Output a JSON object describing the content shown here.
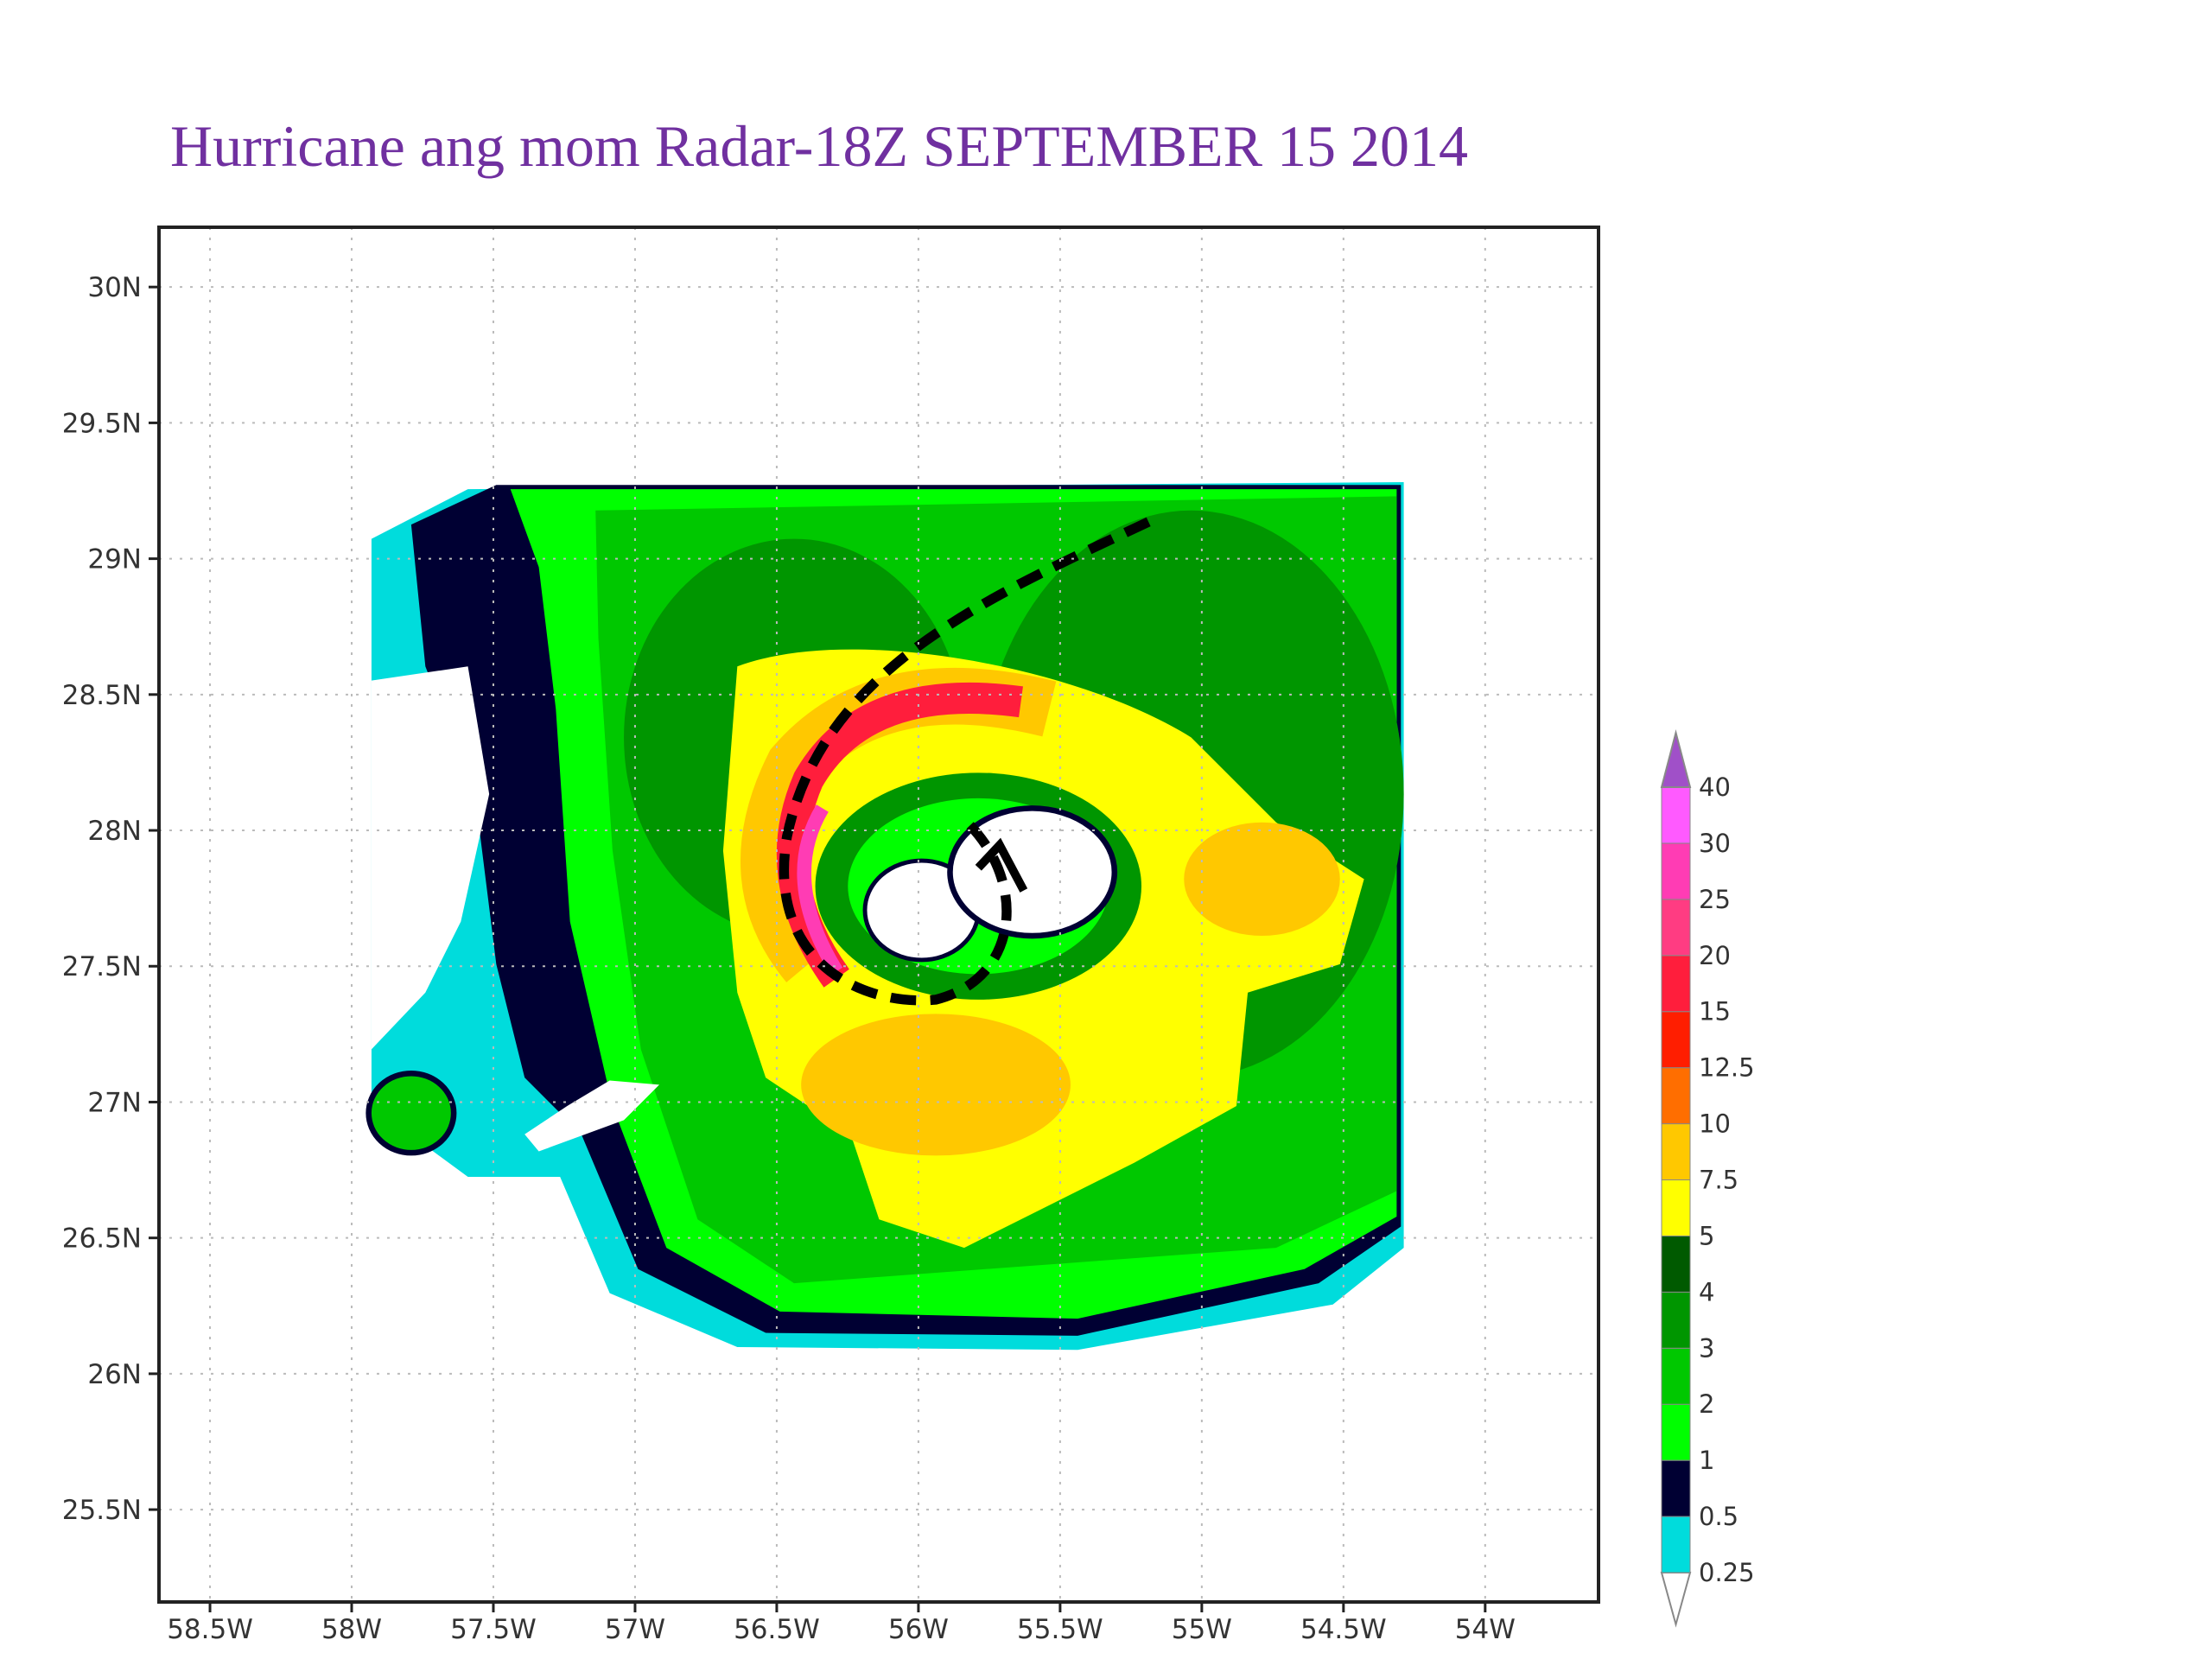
{
  "title": "Hurricane ang mom Radar-18Z SEPTEMBER 15 2014",
  "map": {
    "xlim": [
      -58.68,
      -53.6
    ],
    "ylim": [
      25.16,
      30.22
    ],
    "xticks": [
      {
        "value": -58.5,
        "label": "58.5W"
      },
      {
        "value": -58,
        "label": "58W"
      },
      {
        "value": -57.5,
        "label": "57.5W"
      },
      {
        "value": -57,
        "label": "57W"
      },
      {
        "value": -56.5,
        "label": "56.5W"
      },
      {
        "value": -56,
        "label": "56W"
      },
      {
        "value": -55.5,
        "label": "55.5W"
      },
      {
        "value": -55,
        "label": "55W"
      },
      {
        "value": -54.5,
        "label": "54.5W"
      },
      {
        "value": -54,
        "label": "54W"
      }
    ],
    "yticks": [
      {
        "value": 30,
        "label": "30N"
      },
      {
        "value": 29.5,
        "label": "29.5N"
      },
      {
        "value": 29,
        "label": "29N"
      },
      {
        "value": 28.5,
        "label": "28.5N"
      },
      {
        "value": 28,
        "label": "28N"
      },
      {
        "value": 27.5,
        "label": "27.5N"
      },
      {
        "value": 27,
        "label": "27N"
      },
      {
        "value": 26.5,
        "label": "26.5N"
      },
      {
        "value": 26,
        "label": "26N"
      },
      {
        "value": 25.5,
        "label": "25.5N"
      }
    ],
    "grid": true
  },
  "colorbar": {
    "levels": [
      0.25,
      0.5,
      1,
      2,
      3,
      4,
      5,
      7.5,
      10,
      12.5,
      15,
      20,
      25,
      30,
      40
    ],
    "colors": [
      "#ffffff",
      "#00dcdc",
      "#000033",
      "#00ff00",
      "#00c800",
      "#009600",
      "#005a00",
      "#ffff00",
      "#ffc800",
      "#ff6e00",
      "#ff1e00",
      "#ff1e3c",
      "#ff3c82",
      "#ff3cb4",
      "#ff5aff",
      "#a050c8"
    ]
  }
}
